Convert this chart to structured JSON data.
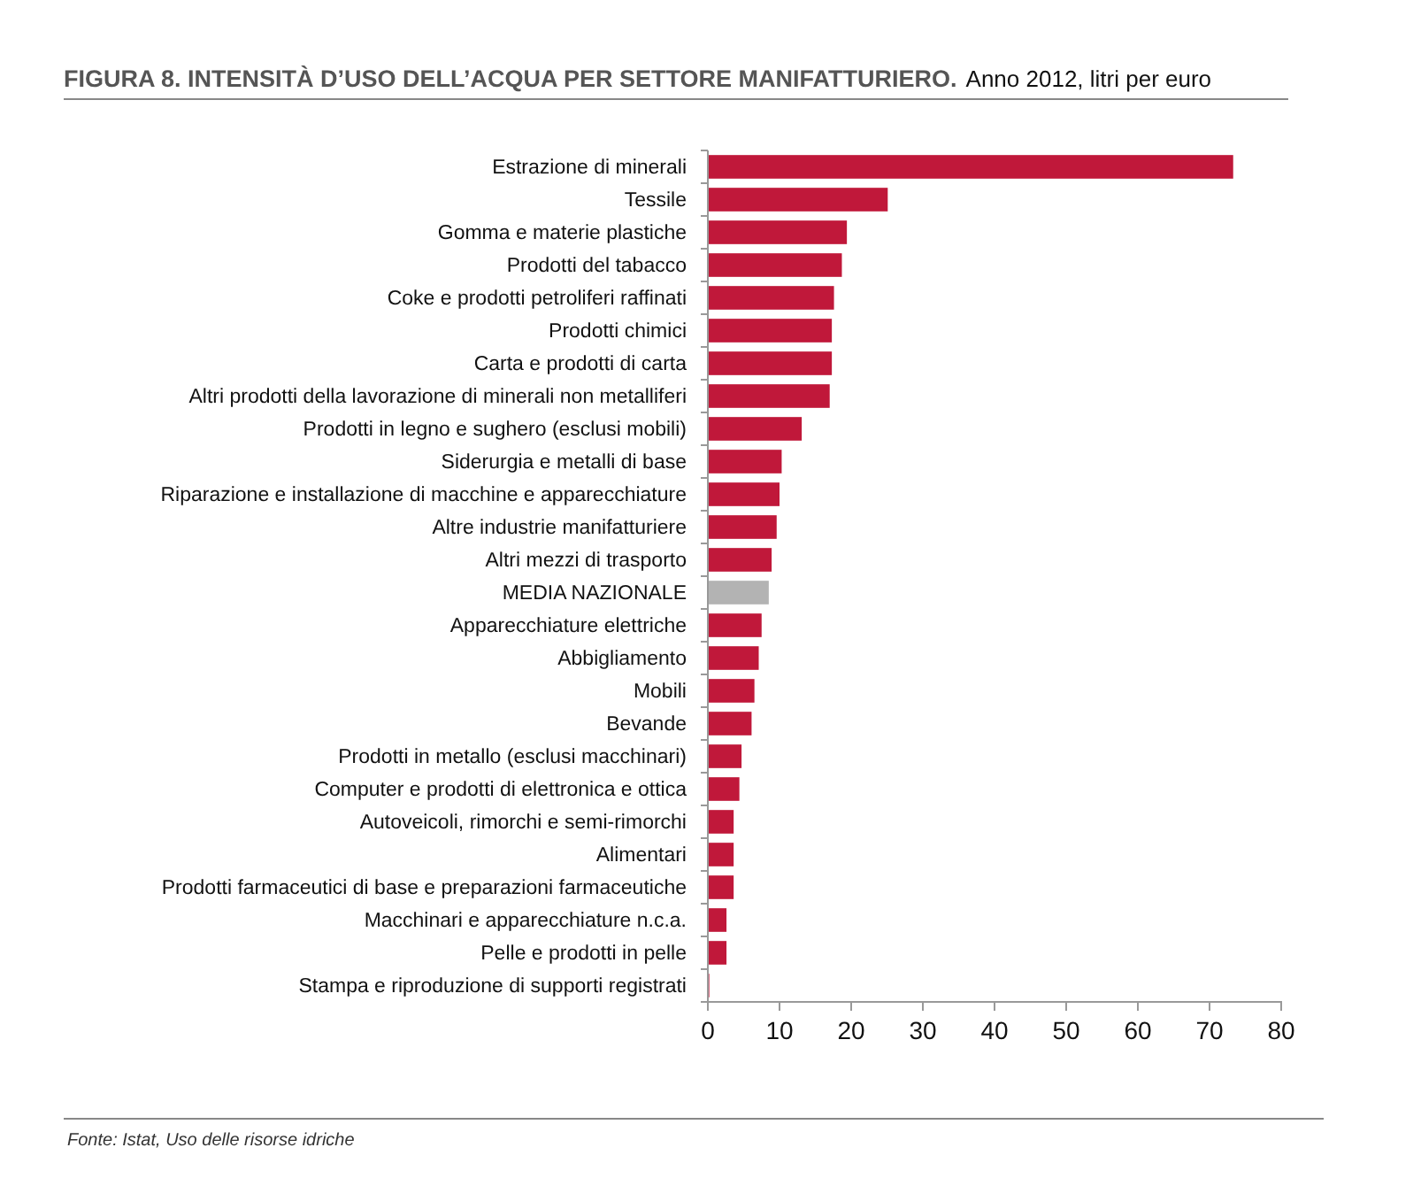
{
  "chart_data": {
    "type": "bar",
    "orientation": "horizontal",
    "title": "FIGURA 8. INTENSITÀ D’USO DELL’ACQUA PER SETTORE MANIFATTURIERO.",
    "subtitle": "Anno 2012, litri per euro",
    "categories": [
      "Estrazione di minerali",
      "Tessile",
      "Gomma e materie plastiche",
      "Prodotti del tabacco",
      "Coke e prodotti petroliferi raffinati",
      "Prodotti chimici",
      "Carta e prodotti di carta",
      "Altri prodotti della lavorazione di minerali non metalliferi",
      "Prodotti in legno e sughero (esclusi mobili)",
      "Siderurgia e metalli di base",
      "Riparazione e installazione di macchine e apparecchiature",
      "Altre industrie manifatturiere",
      "Altri mezzi di trasporto",
      "MEDIA NAZIONALE",
      "Apparecchiature elettriche",
      "Abbigliamento",
      "Mobili",
      "Bevande",
      "Prodotti in metallo (esclusi macchinari)",
      "Computer e prodotti di elettronica e ottica",
      "Autoveicoli, rimorchi e semi-rimorchi",
      "Alimentari",
      "Prodotti farmaceutici di base e preparazioni farmaceutiche",
      "Macchinari e apparecchiature n.c.a.",
      "Pelle e prodotti in pelle",
      "Stampa e riproduzione di supporti registrati"
    ],
    "values": [
      73.3,
      25.1,
      19.4,
      18.7,
      17.6,
      17.3,
      17.3,
      17.0,
      13.1,
      10.3,
      10.0,
      9.6,
      8.9,
      8.5,
      7.5,
      7.1,
      6.5,
      6.1,
      4.7,
      4.4,
      3.6,
      3.6,
      3.6,
      2.6,
      2.6,
      0.2
    ],
    "colors": [
      "#c0183a",
      "#c0183a",
      "#c0183a",
      "#c0183a",
      "#c0183a",
      "#c0183a",
      "#c0183a",
      "#c0183a",
      "#c0183a",
      "#c0183a",
      "#c0183a",
      "#c0183a",
      "#c0183a",
      "#b3b3b3",
      "#c0183a",
      "#c0183a",
      "#c0183a",
      "#c0183a",
      "#c0183a",
      "#c0183a",
      "#c0183a",
      "#c0183a",
      "#c0183a",
      "#c0183a",
      "#c0183a",
      "#c0183a"
    ],
    "xlim": [
      0,
      80
    ],
    "xticks": [
      0,
      10,
      20,
      30,
      40,
      50,
      60,
      70,
      80
    ],
    "annotations": [
      "Fonte: Istat, Uso delle risorse idriche"
    ]
  }
}
